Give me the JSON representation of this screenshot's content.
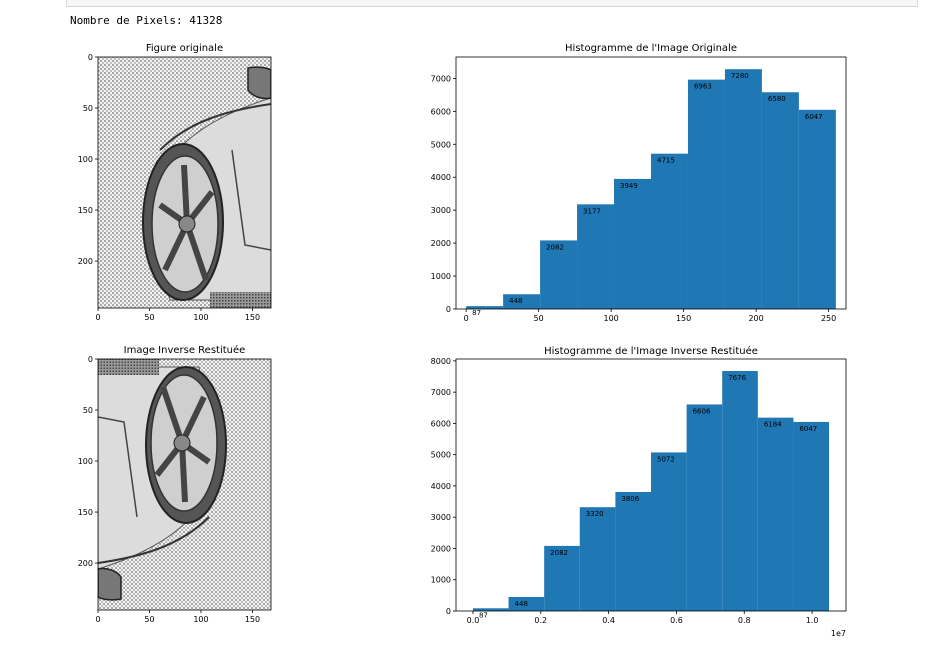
{
  "output_line": "Nombre de Pixels: 41328",
  "colors": {
    "bar": "#1f77b4",
    "axis": "#000000",
    "background": "#ffffff"
  },
  "chart_data": [
    {
      "type": "image",
      "title": "Figure originale",
      "xticks": [
        "0",
        "50",
        "100",
        "150"
      ],
      "yticks": [
        "0",
        "50",
        "100",
        "150",
        "200"
      ],
      "xlim": [
        0,
        168
      ],
      "ylim": [
        246,
        0
      ]
    },
    {
      "type": "bar",
      "title": "Histogramme de l'Image Originale",
      "values": [
        87,
        448,
        2082,
        3177,
        3949,
        4715,
        6963,
        7280,
        6580,
        6047
      ],
      "bin_edges": [
        0,
        25.5,
        51,
        76.5,
        102,
        127.5,
        153,
        178.5,
        204,
        229.5,
        255
      ],
      "data_labels": [
        "87",
        "448",
        "2082",
        "3177",
        "3949",
        "4715",
        "6963",
        "7280",
        "6580",
        "6047"
      ],
      "xticks": [
        "0",
        "50",
        "100",
        "150",
        "200",
        "250"
      ],
      "yticks": [
        "0",
        "1000",
        "2000",
        "3000",
        "4000",
        "5000",
        "6000",
        "7000"
      ],
      "xlim": [
        -7,
        262
      ],
      "ylim": [
        0,
        7650
      ]
    },
    {
      "type": "image",
      "title": "Image Inverse Restituée",
      "xticks": [
        "0",
        "50",
        "100",
        "150"
      ],
      "yticks": [
        "0",
        "50",
        "100",
        "150",
        "200"
      ],
      "xlim": [
        0,
        168
      ],
      "ylim": [
        246,
        0
      ]
    },
    {
      "type": "bar",
      "title": "Histogramme de l'Image Inverse Restituée",
      "values": [
        87,
        448,
        2082,
        3320,
        3806,
        5072,
        6606,
        7676,
        6184,
        6047
      ],
      "bin_edges": [
        0,
        0.105,
        0.21,
        0.315,
        0.42,
        0.525,
        0.63,
        0.735,
        0.84,
        0.945,
        1.05
      ],
      "data_labels": [
        "87",
        "448",
        "2082",
        "3320",
        "3806",
        "5072",
        "6606",
        "7676",
        "6184",
        "6047"
      ],
      "xticks": [
        "0.0",
        "0.2",
        "0.4",
        "0.6",
        "0.8",
        "1.0"
      ],
      "yticks": [
        "0",
        "1000",
        "2000",
        "3000",
        "4000",
        "5000",
        "6000",
        "7000",
        "8000"
      ],
      "offset_text": "1e7",
      "xlim": [
        -0.05,
        1.1
      ],
      "ylim": [
        0,
        8060
      ]
    }
  ]
}
